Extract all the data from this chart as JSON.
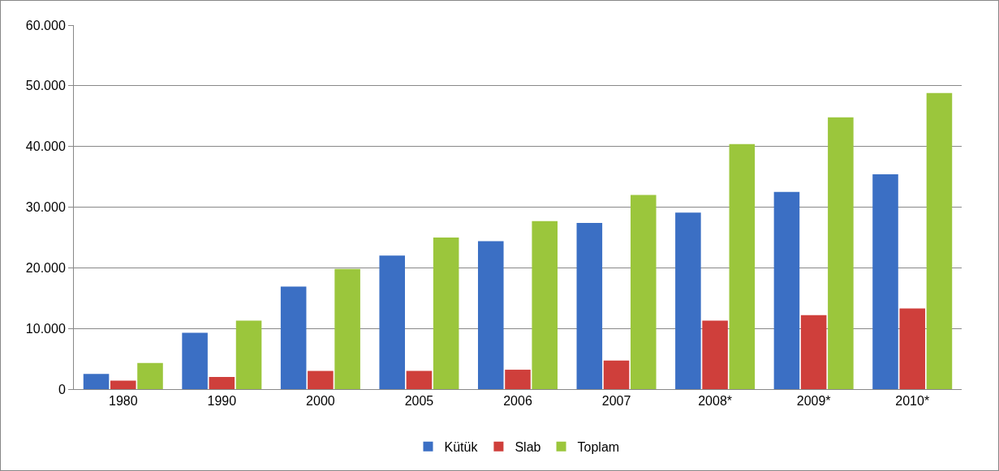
{
  "chart_data": {
    "type": "bar",
    "categories": [
      "1980",
      "1990",
      "2000",
      "2005",
      "2006",
      "2007",
      "2008*",
      "2009*",
      "2010*"
    ],
    "series": [
      {
        "name": "Kütük",
        "color": "#3b6fc4",
        "values": [
          2500,
          9300,
          16900,
          22000,
          24400,
          27400,
          29100,
          32500,
          35400
        ]
      },
      {
        "name": "Slab",
        "color": "#cf3f3b",
        "values": [
          1400,
          2000,
          3000,
          3000,
          3200,
          4700,
          11300,
          12200,
          13300
        ]
      },
      {
        "name": "Toplam",
        "color": "#9bc63c",
        "values": [
          4300,
          11300,
          19800,
          25000,
          27700,
          32000,
          40400,
          44800,
          48800
        ]
      }
    ],
    "ylim": [
      0,
      60000
    ],
    "yticks": [
      {
        "value": 0,
        "label": "0"
      },
      {
        "value": 10000,
        "label": "10.000"
      },
      {
        "value": 20000,
        "label": "20.000"
      },
      {
        "value": 30000,
        "label": "30.000"
      },
      {
        "value": 40000,
        "label": "40.000"
      },
      {
        "value": 50000,
        "label": "50.000"
      },
      {
        "value": 60000,
        "label": "60.000"
      }
    ],
    "grid": "y",
    "legend": "bottom"
  }
}
